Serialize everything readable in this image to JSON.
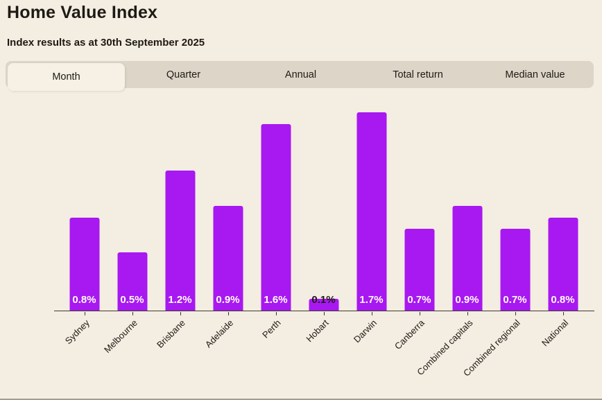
{
  "header": {
    "title": "Home Value Index",
    "subtitle": "Index results as at 30th September 2025"
  },
  "tabs": {
    "items": [
      {
        "label": "Month",
        "active": true
      },
      {
        "label": "Quarter",
        "active": false
      },
      {
        "label": "Annual",
        "active": false
      },
      {
        "label": "Total return",
        "active": false
      },
      {
        "label": "Median value",
        "active": false
      }
    ]
  },
  "chart_data": {
    "type": "bar",
    "title": "Home Value Index",
    "subtitle": "Index results as at 30th September 2025",
    "active_series": "Month",
    "categories": [
      "Sydney",
      "Melbourne",
      "Brisbane",
      "Adelaide",
      "Perth",
      "Hobart",
      "Darwin",
      "Canberra",
      "Combined capitals",
      "Combined regional",
      "National"
    ],
    "values": [
      0.8,
      0.5,
      1.2,
      0.9,
      1.6,
      0.1,
      1.7,
      0.7,
      0.9,
      0.7,
      0.8
    ],
    "value_labels": [
      "0.8%",
      "0.5%",
      "1.2%",
      "0.9%",
      "1.6%",
      "0.1%",
      "1.7%",
      "0.7%",
      "0.9%",
      "0.7%",
      "0.8%"
    ],
    "xlabel": "",
    "ylabel": "",
    "ylim": [
      0,
      1.73
    ],
    "grid": false,
    "legend": false,
    "bar_color": "#a818f0",
    "label_color_inside_bar": "#ffffff",
    "label_color_above_bar": "#1d1a15"
  },
  "colors": {
    "page_bg": "#f4ede1",
    "tabbar_bg": "#ddd5c7",
    "active_tab_bg": "#f6f0e5",
    "bar": "#a818f0",
    "text": "#1d1a15",
    "axis": "#3e3930"
  }
}
